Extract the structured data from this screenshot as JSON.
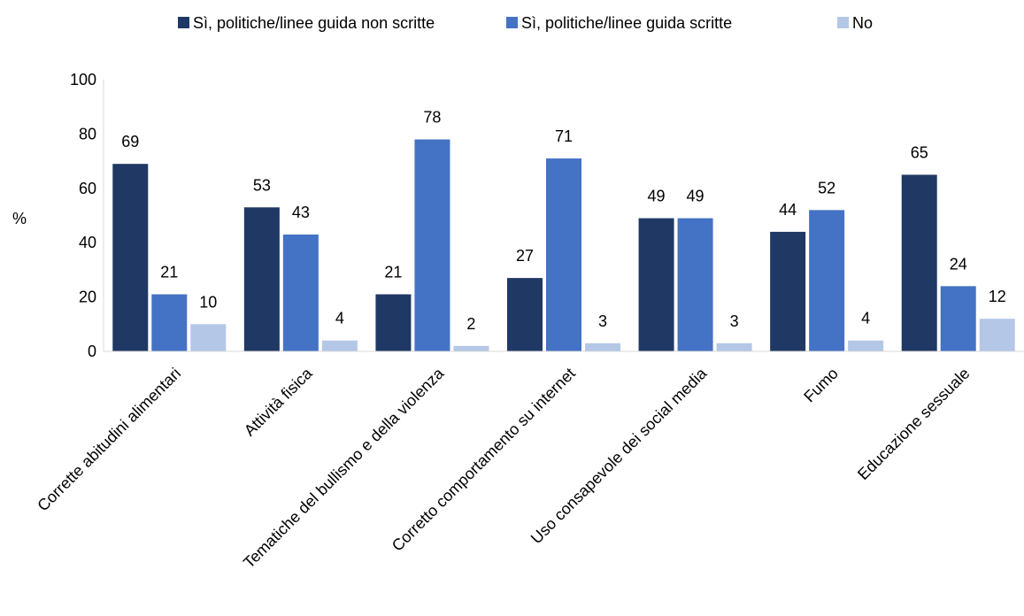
{
  "chart_data": {
    "type": "bar",
    "title": "",
    "xlabel": "",
    "ylabel": "%",
    "ylim": [
      0,
      100
    ],
    "yticks": [
      0,
      20,
      40,
      60,
      80,
      100
    ],
    "grid": false,
    "legend_position": "top-center",
    "categories": [
      "Corrette abitudini alimentari",
      "Attività fisica",
      "Tematiche del bullismo e della violenza",
      "Corretto comportamento su internet",
      "Uso consapevole dei social media",
      "Fumo",
      "Educazione sessuale"
    ],
    "series": [
      {
        "name": "Sì, politiche/linee guida non scritte",
        "color": "#203864",
        "values": [
          69,
          53,
          21,
          27,
          49,
          44,
          65
        ]
      },
      {
        "name": "Sì, politiche/linee guida scritte",
        "color": "#4472C4",
        "values": [
          21,
          43,
          78,
          71,
          49,
          52,
          24
        ]
      },
      {
        "name": "No",
        "color": "#B4C7E7",
        "values": [
          10,
          4,
          2,
          3,
          3,
          4,
          12
        ]
      }
    ]
  }
}
